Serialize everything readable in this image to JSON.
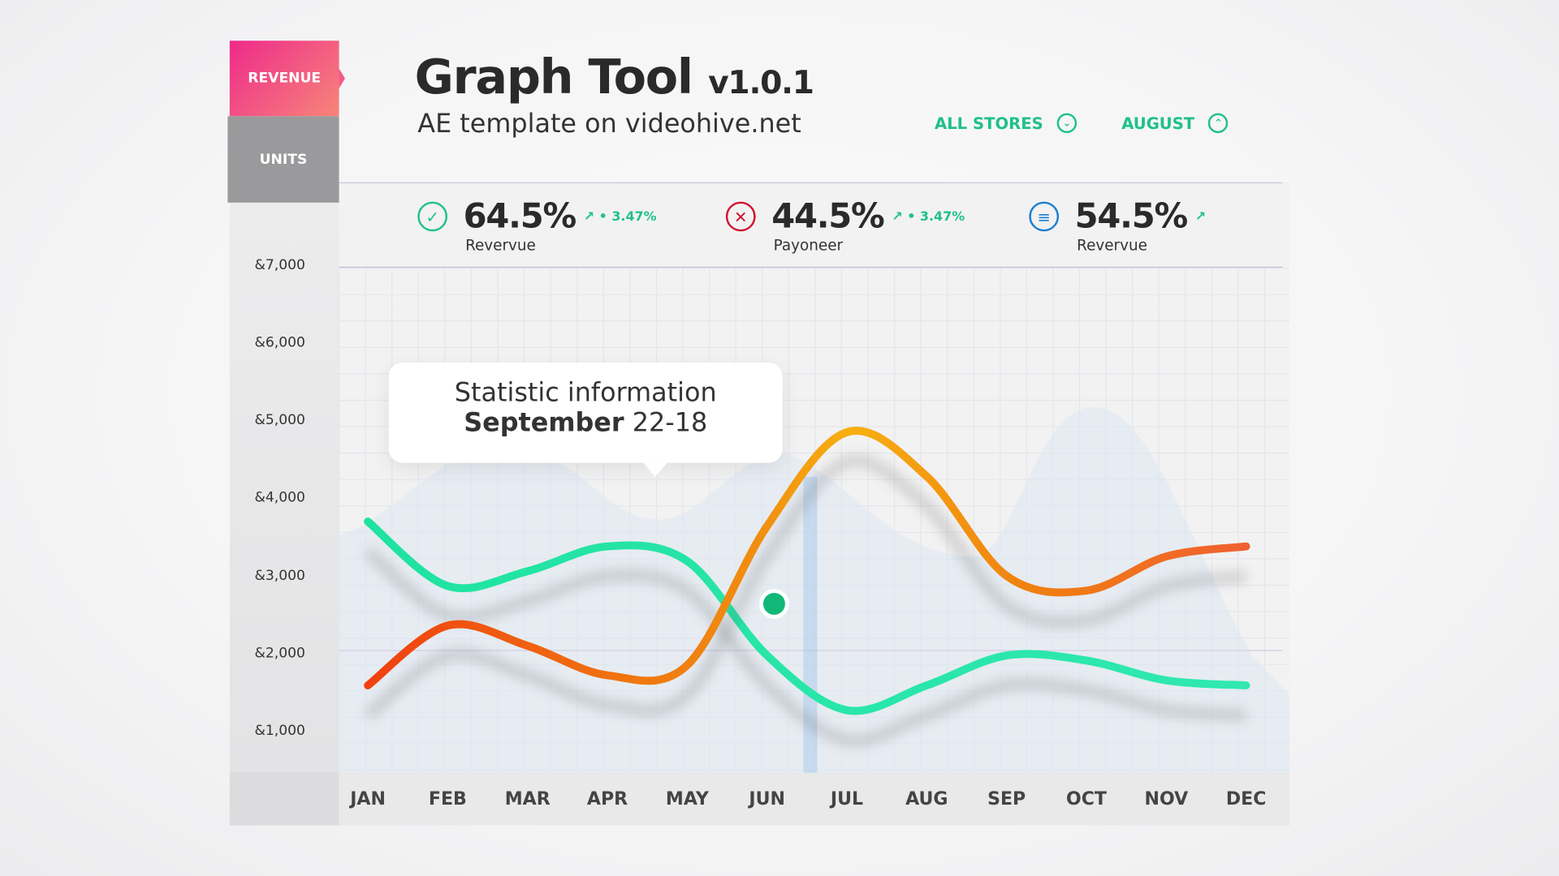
{
  "tabs": [
    {
      "label": "REVENUE",
      "active": true
    },
    {
      "label": "UNITS",
      "active": false
    }
  ],
  "header": {
    "title": "Graph Tool",
    "version": "v1.0.1",
    "subtitle": "AE template on videohive.net"
  },
  "filters": [
    {
      "label": "ALL STORES",
      "icon": "chevron-down-circle-icon"
    },
    {
      "label": "AUGUST",
      "icon": "chevron-up-circle-icon"
    }
  ],
  "stats": [
    {
      "value": "64.5%",
      "change": "↗ • 3.47%",
      "label": "Revervue",
      "icon": "check-circle-icon",
      "color": "#1fc08a"
    },
    {
      "value": "44.5%",
      "change": "↗ • 3.47%",
      "label": "Payoneer",
      "icon": "x-circle-icon",
      "color": "#d0142c"
    },
    {
      "value": "54.5%",
      "change": "↗",
      "label": "Revervue",
      "icon": "chat-bubble-icon",
      "color": "#1a7fd0"
    }
  ],
  "tooltip": {
    "line1": "Statistic information",
    "bold": "September",
    "rest": " 22-18"
  },
  "colors": {
    "accent": "#1fc08a",
    "green_series": "#1fe3a0",
    "orange_series": "#f06010",
    "revenue_tab": "#ee2a8a"
  },
  "chart_data": {
    "type": "line",
    "categories": [
      "JAN",
      "FEB",
      "MAR",
      "APR",
      "MAY",
      "JUN",
      "JUL",
      "AUG",
      "SEP",
      "OCT",
      "NOV",
      "DEC"
    ],
    "yticks": [
      "&7,000",
      "&6,000",
      "&5,000",
      "&4,000",
      "&3,000",
      "&2,000",
      "&1,000"
    ],
    "ytick_values": [
      7000,
      6000,
      5000,
      4000,
      3000,
      2000,
      1000
    ],
    "ylim": [
      1000,
      7000
    ],
    "grid": true,
    "series": [
      {
        "values": [
          3710,
          2880,
          3070,
          3390,
          3200,
          1985,
          1280,
          1600,
          1985,
          1920,
          1665,
          1600
        ],
        "color": "#1fe3a0"
      },
      {
        "values": [
          1600,
          2370,
          2110,
          1730,
          1860,
          3650,
          4860,
          4290,
          3010,
          2820,
          3260,
          3390
        ],
        "color": "#f06010"
      }
    ],
    "marker": {
      "month_position": 5.5,
      "value": 2650
    }
  }
}
